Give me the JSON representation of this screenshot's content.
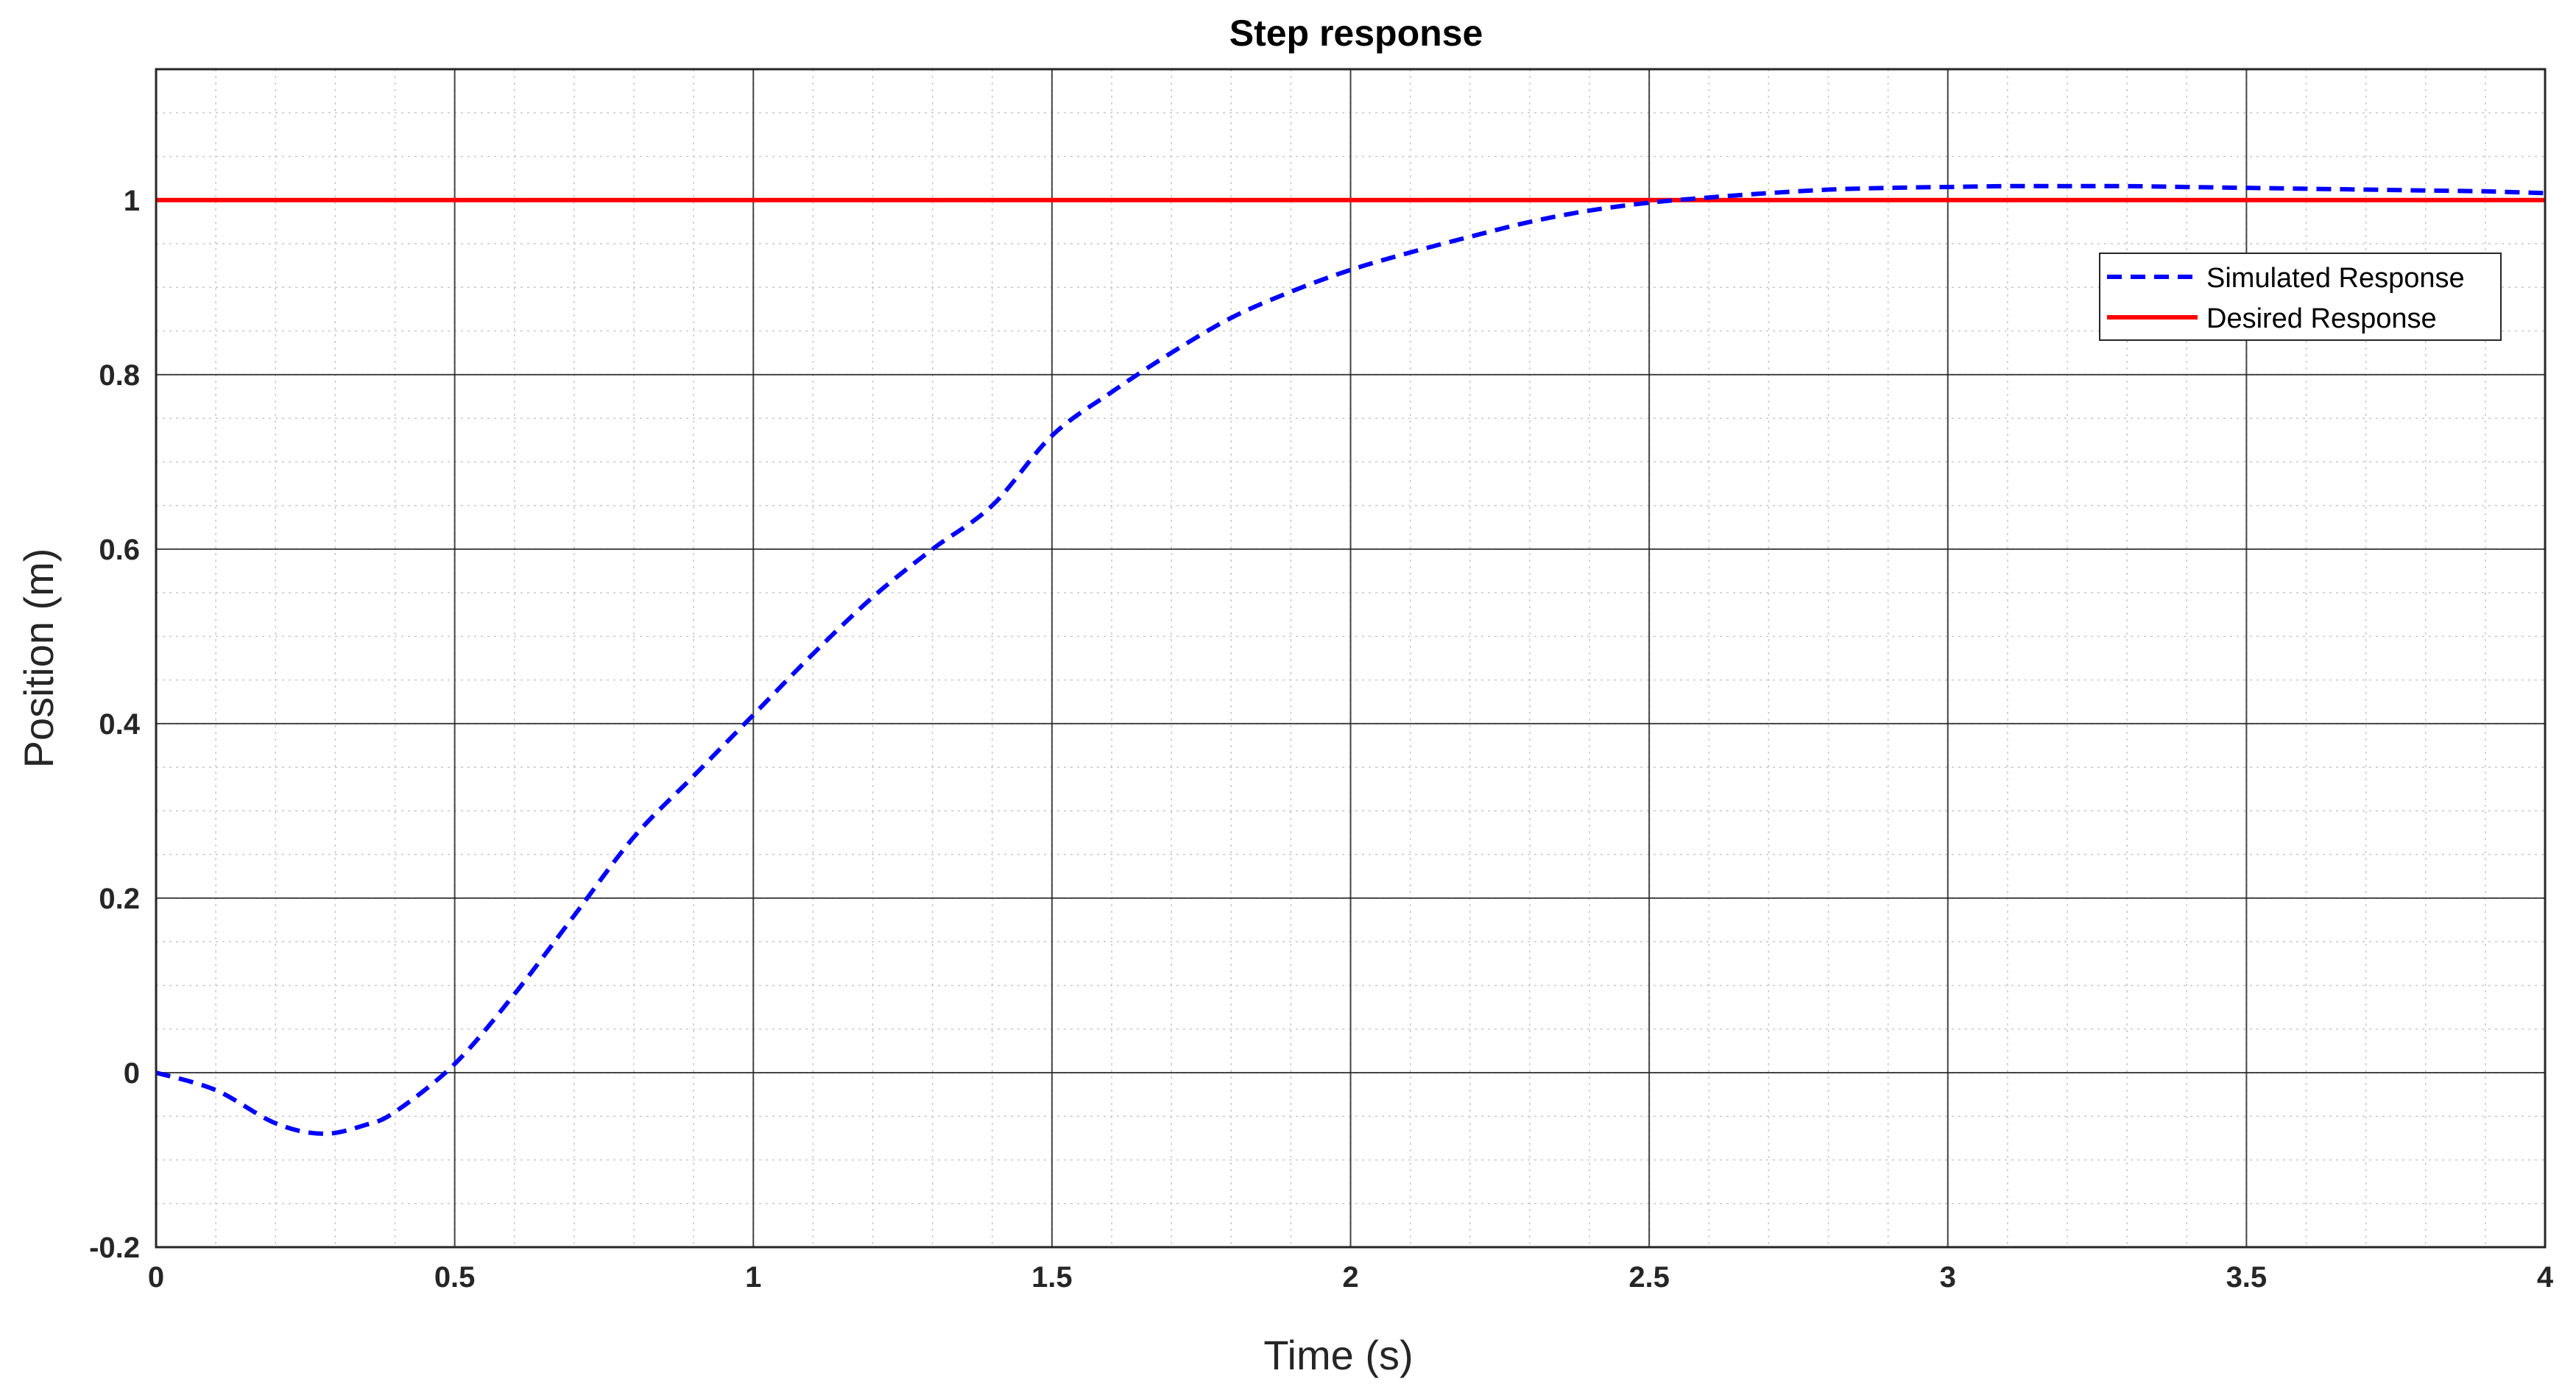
{
  "chart_data": {
    "type": "line",
    "title": "Step response",
    "xlabel": "Time (s)",
    "ylabel": "Position (m)",
    "xlim": [
      0,
      4
    ],
    "ylim": [
      -0.2,
      1.15
    ],
    "xticks": [
      0,
      0.5,
      1,
      1.5,
      2,
      2.5,
      3,
      3.5,
      4
    ],
    "xtick_labels": [
      "0",
      "0.5",
      "1",
      "1.5",
      "2",
      "2.5",
      "3",
      "3.5",
      "4"
    ],
    "yticks": [
      -0.2,
      0,
      0.2,
      0.4,
      0.6,
      0.8,
      1
    ],
    "ytick_labels": [
      "-0.2",
      "0",
      "0.2",
      "0.4",
      "0.6",
      "0.8",
      "1"
    ],
    "grid": true,
    "minor_grid": true,
    "legend_position": "top-right",
    "series": [
      {
        "name": "Simulated Response",
        "style": "dashed",
        "color": "#0000ff",
        "x": [
          0,
          0.1,
          0.2,
          0.28,
          0.35,
          0.4,
          0.5,
          0.6,
          0.7,
          0.8,
          0.9,
          1.0,
          1.1,
          1.2,
          1.3,
          1.4,
          1.5,
          1.6,
          1.7,
          1.8,
          1.9,
          2.0,
          2.1,
          2.2,
          2.3,
          2.4,
          2.5,
          2.6,
          2.7,
          2.8,
          2.9,
          3.0,
          3.1,
          3.2,
          3.3,
          3.4,
          3.5,
          3.6,
          3.7,
          3.8,
          3.9,
          4.0
        ],
        "y": [
          0,
          -0.02,
          -0.058,
          -0.07,
          -0.06,
          -0.045,
          0.01,
          0.09,
          0.18,
          0.27,
          0.34,
          0.41,
          0.48,
          0.545,
          0.6,
          0.65,
          0.73,
          0.78,
          0.825,
          0.865,
          0.895,
          0.92,
          0.94,
          0.958,
          0.975,
          0.988,
          0.997,
          1.003,
          1.008,
          1.012,
          1.014,
          1.015,
          1.016,
          1.016,
          1.016,
          1.015,
          1.014,
          1.013,
          1.012,
          1.011,
          1.01,
          1.008
        ]
      },
      {
        "name": "Desired Response",
        "style": "solid",
        "color": "#ff0000",
        "x": [
          0,
          4
        ],
        "y": [
          1,
          1
        ]
      }
    ]
  }
}
